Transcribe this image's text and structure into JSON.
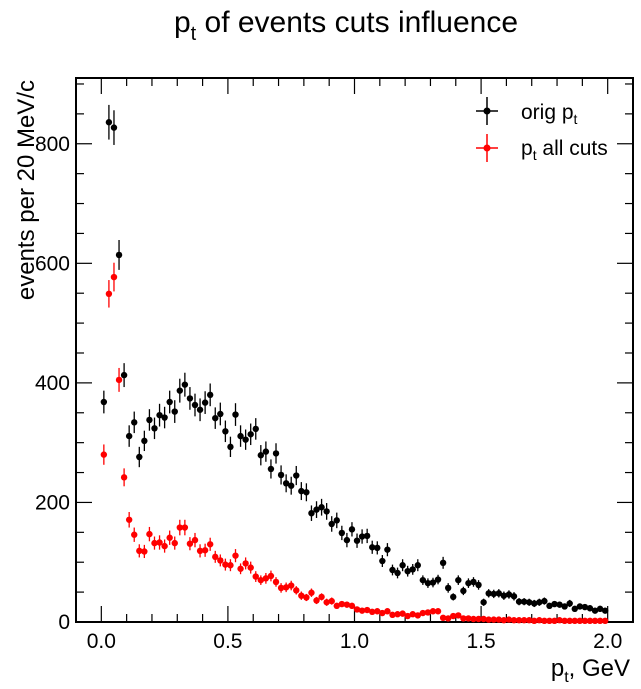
{
  "chart_data": {
    "type": "scatter",
    "title": {
      "main": "p",
      "sub": "t",
      "rest": " of events cuts influence"
    },
    "xlabel": {
      "main": "p",
      "sub": "t",
      "rest": ", GeV"
    },
    "ylabel": "events per 20 MeV/c",
    "xlim": [
      -0.1,
      2.1
    ],
    "ylim": [
      0,
      910
    ],
    "xticks": [
      0.0,
      0.5,
      1.0,
      1.5,
      2.0
    ],
    "xtick_labels": [
      "0.0",
      "0.5",
      "1.0",
      "1.5",
      "2.0"
    ],
    "yticks": [
      0,
      200,
      400,
      600,
      800
    ],
    "ytick_labels": [
      "0",
      "200",
      "400",
      "600",
      "800"
    ],
    "grid": false,
    "legend_position": "top-right",
    "legend": [
      {
        "label_main": "orig p",
        "label_sub": "t",
        "label_rest": ""
      },
      {
        "label_main": "p",
        "label_sub": "t",
        "label_rest": " all cuts"
      }
    ],
    "x": [
      0.01,
      0.03,
      0.05,
      0.07,
      0.09,
      0.11,
      0.13,
      0.15,
      0.17,
      0.19,
      0.21,
      0.23,
      0.25,
      0.27,
      0.29,
      0.31,
      0.33,
      0.35,
      0.37,
      0.39,
      0.41,
      0.43,
      0.45,
      0.47,
      0.49,
      0.51,
      0.53,
      0.55,
      0.57,
      0.59,
      0.61,
      0.63,
      0.65,
      0.67,
      0.69,
      0.71,
      0.73,
      0.75,
      0.77,
      0.79,
      0.81,
      0.83,
      0.85,
      0.87,
      0.89,
      0.91,
      0.93,
      0.95,
      0.97,
      0.99,
      1.01,
      1.03,
      1.05,
      1.07,
      1.09,
      1.11,
      1.13,
      1.15,
      1.17,
      1.19,
      1.21,
      1.23,
      1.25,
      1.27,
      1.29,
      1.31,
      1.33,
      1.35,
      1.37,
      1.39,
      1.41,
      1.43,
      1.45,
      1.47,
      1.49,
      1.51,
      1.53,
      1.55,
      1.57,
      1.59,
      1.61,
      1.63,
      1.65,
      1.67,
      1.69,
      1.71,
      1.73,
      1.75,
      1.77,
      1.79,
      1.81,
      1.83,
      1.85,
      1.87,
      1.89,
      1.91,
      1.93,
      1.95,
      1.97,
      1.99
    ],
    "series": [
      {
        "name": "orig pt",
        "color": "#000000",
        "values": [
          368,
          836,
          827,
          614,
          413,
          311,
          334,
          276,
          303,
          338,
          324,
          346,
          342,
          368,
          352,
          387,
          397,
          374,
          363,
          355,
          367,
          380,
          341,
          348,
          319,
          293,
          347,
          311,
          305,
          314,
          323,
          279,
          285,
          256,
          282,
          246,
          232,
          228,
          245,
          219,
          217,
          182,
          188,
          192,
          185,
          164,
          170,
          149,
          137,
          155,
          136,
          143,
          144,
          125,
          124,
          102,
          121,
          87,
          82,
          95,
          85,
          88,
          95,
          70,
          65,
          66,
          71,
          99,
          57,
          42,
          70,
          52,
          65,
          67,
          62,
          33,
          48,
          47,
          48,
          44,
          46,
          43,
          34,
          34,
          33,
          31,
          33,
          35,
          27,
          30,
          29,
          26,
          31,
          22,
          26,
          25,
          23,
          19,
          22,
          19
        ],
        "errors": [
          19,
          29,
          29,
          25,
          20,
          18,
          18,
          17,
          17,
          18,
          18,
          19,
          18,
          19,
          19,
          20,
          20,
          19,
          19,
          19,
          19,
          19,
          18,
          19,
          18,
          17,
          19,
          18,
          17,
          18,
          18,
          17,
          17,
          16,
          17,
          16,
          15,
          15,
          16,
          15,
          15,
          13,
          14,
          14,
          14,
          13,
          13,
          12,
          12,
          12,
          12,
          12,
          12,
          11,
          11,
          10,
          11,
          9,
          9,
          10,
          9,
          9,
          10,
          8,
          8,
          8,
          8,
          10,
          8,
          6,
          8,
          7,
          8,
          8,
          8,
          6,
          7,
          7,
          7,
          7,
          7,
          7,
          6,
          6,
          6,
          6,
          6,
          6,
          5,
          5,
          5,
          5,
          6,
          5,
          5,
          5,
          5,
          4,
          5,
          4
        ]
      },
      {
        "name": "pt all cuts",
        "color": "#ff0000",
        "values": [
          280,
          549,
          577,
          405,
          242,
          171,
          146,
          119,
          118,
          147,
          132,
          133,
          127,
          141,
          132,
          158,
          158,
          131,
          137,
          119,
          120,
          130,
          109,
          103,
          96,
          95,
          111,
          89,
          98,
          91,
          76,
          70,
          73,
          77,
          67,
          57,
          58,
          61,
          53,
          44,
          41,
          49,
          36,
          42,
          33,
          35,
          27,
          30,
          29,
          27,
          21,
          19,
          20,
          17,
          18,
          15,
          18,
          12,
          13,
          14,
          10,
          13,
          11,
          15,
          16,
          18,
          18,
          7,
          6,
          10,
          11,
          6,
          6,
          5,
          5,
          5,
          4,
          4,
          4,
          3,
          4,
          3,
          3,
          3,
          3,
          2,
          3,
          2,
          2,
          2,
          3,
          2,
          2,
          2,
          2,
          2,
          2,
          2,
          2,
          2
        ],
        "errors": [
          17,
          23,
          24,
          20,
          15,
          13,
          12,
          11,
          11,
          12,
          11,
          12,
          11,
          12,
          11,
          13,
          13,
          11,
          12,
          11,
          11,
          11,
          10,
          10,
          10,
          10,
          11,
          9,
          10,
          10,
          9,
          8,
          9,
          9,
          8,
          8,
          8,
          8,
          7,
          7,
          6,
          7,
          6,
          6,
          6,
          6,
          5,
          5,
          5,
          5,
          5,
          4,
          4,
          4,
          4,
          4,
          4,
          3,
          4,
          4,
          3,
          4,
          3,
          4,
          4,
          4,
          4,
          3,
          2,
          3,
          3,
          2,
          2,
          2,
          2,
          2,
          2,
          2,
          2,
          2,
          2,
          2,
          2,
          2,
          2,
          1,
          2,
          1,
          1,
          1,
          2,
          1,
          1,
          1,
          1,
          1,
          1,
          1,
          1,
          1
        ]
      }
    ]
  }
}
